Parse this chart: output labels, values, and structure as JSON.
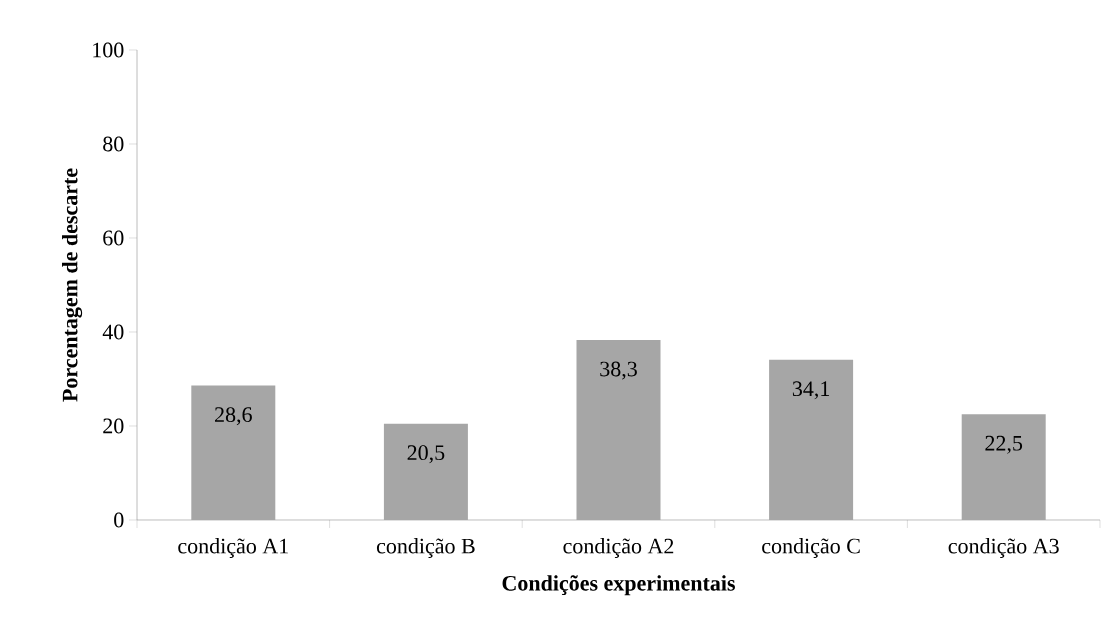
{
  "chart_data": {
    "type": "bar",
    "xlabel": "Condições experimentais",
    "ylabel": "Porcentagem de descarte",
    "categories": [
      "condição A1",
      "condição B",
      "condição A2",
      "condição C",
      "condição A3"
    ],
    "values": [
      28.6,
      20.5,
      38.3,
      34.1,
      22.5
    ],
    "value_labels": [
      "28,6",
      "20,5",
      "38,3",
      "34,1",
      "22,5"
    ],
    "color": "#a6a6a6",
    "ylim": [
      0,
      100
    ],
    "yticks": [
      0,
      20,
      40,
      60,
      80,
      100
    ]
  }
}
